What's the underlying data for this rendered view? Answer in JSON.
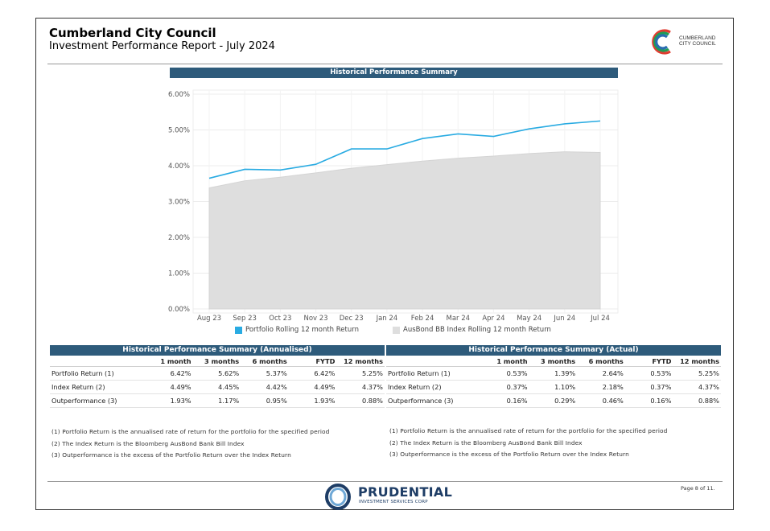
{
  "header": {
    "title": "Cumberland City Council",
    "subtitle": "Investment Performance Report - July 2024",
    "logo_text_line1": "CUMBERLAND",
    "logo_text_line2": "CITY COUNCIL"
  },
  "chart_data": {
    "type": "line",
    "title": "Historical Performance Summary",
    "categories": [
      "Aug 23",
      "Sep 23",
      "Oct 23",
      "Nov 23",
      "Dec 23",
      "Jan 24",
      "Feb 24",
      "Mar 24",
      "Apr 24",
      "May 24",
      "Jun 24",
      "Jul 24"
    ],
    "y_ticks": [
      "0.00%",
      "1.00%",
      "2.00%",
      "3.00%",
      "4.00%",
      "5.00%",
      "6.00%"
    ],
    "ylim": [
      0,
      6
    ],
    "series": [
      {
        "name": "Portfolio Rolling 12 month Return",
        "kind": "line",
        "color": "#29abe2",
        "values": [
          3.65,
          3.9,
          3.88,
          4.04,
          4.47,
          4.47,
          4.76,
          4.89,
          4.82,
          5.03,
          5.17,
          5.25
        ]
      },
      {
        "name": "AusBond BB Index Rolling 12 month Return",
        "kind": "area",
        "color": "#dedede",
        "values": [
          3.38,
          3.58,
          3.68,
          3.8,
          3.93,
          4.03,
          4.13,
          4.21,
          4.27,
          4.34,
          4.39,
          4.37
        ]
      }
    ],
    "grid": true,
    "legend_position": "bottom"
  },
  "table_annualised": {
    "title": "Historical Performance Summary (Annualised)",
    "columns": [
      "",
      "1 month",
      "3 months",
      "6 months",
      "FYTD",
      "12 months"
    ],
    "rows": [
      {
        "label": "Portfolio Return (1)",
        "values": [
          "6.42%",
          "5.62%",
          "5.37%",
          "6.42%",
          "5.25%"
        ]
      },
      {
        "label": "Index Return (2)",
        "values": [
          "4.49%",
          "4.45%",
          "4.42%",
          "4.49%",
          "4.37%"
        ]
      },
      {
        "label": "Outperformance (3)",
        "values": [
          "1.93%",
          "1.17%",
          "0.95%",
          "1.93%",
          "0.88%"
        ]
      }
    ]
  },
  "table_actual": {
    "title": "Historical Performance Summary (Actual)",
    "columns": [
      "",
      "1 month",
      "3 months",
      "6 months",
      "FYTD",
      "12 months"
    ],
    "rows": [
      {
        "label": "Portfolio Return (1)",
        "values": [
          "0.53%",
          "1.39%",
          "2.64%",
          "0.53%",
          "5.25%"
        ]
      },
      {
        "label": "Index Return (2)",
        "values": [
          "0.37%",
          "1.10%",
          "2.18%",
          "0.37%",
          "4.37%"
        ]
      },
      {
        "label": "Outperformance (3)",
        "values": [
          "0.16%",
          "0.29%",
          "0.46%",
          "0.16%",
          "0.88%"
        ]
      }
    ]
  },
  "notes": [
    "(1) Portfolio Return is the annualised rate of return for the portfolio for the specified period",
    "(2) The Index Return is the Bloomberg AusBond Bank Bill Index",
    "(3) Outperformance is the excess of the Portfolio Return over the Index Return"
  ],
  "footer": {
    "brand_name": "PRUDENTIAL",
    "brand_sub": "INVESTMENT SERVICES CORP",
    "page_number": "Page 8 of 11."
  },
  "colors": {
    "banner": "#2e5b7b",
    "portfolio_line": "#29abe2",
    "index_area": "#dedede"
  }
}
